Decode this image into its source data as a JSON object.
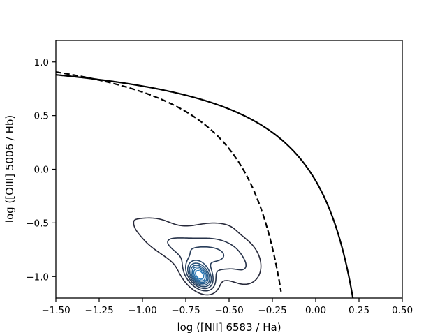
{
  "chart_data": {
    "type": "line",
    "title": "",
    "xlabel": "log ([NII] 6583 / Ha)",
    "ylabel": "log ([OIII] 5006 / Hb)",
    "xlim": [
      -1.5,
      0.5
    ],
    "ylim": [
      -1.2,
      1.2
    ],
    "xticks": [
      "−1.50",
      "−1.25",
      "−1.00",
      "−0.75",
      "−0.50",
      "−0.25",
      "0.00",
      "0.25",
      "0.50"
    ],
    "yticks": [
      "−1.0",
      "−0.5",
      "0.0",
      "0.5",
      "1.0"
    ],
    "grid": false,
    "series": [
      {
        "line_style": "solid",
        "color": "#000000",
        "formula": "0.61/(x-0.47)+1.19",
        "x_max": 0.22
      },
      {
        "line_style": "dashed",
        "color": "#000000",
        "formula": "0.61/(x-0.05)+1.3",
        "x_max": -0.2
      }
    ],
    "density_contours": {
      "peak": [
        -0.67,
        -0.99
      ],
      "color_low": "#27293a",
      "color_high": "#2a7ab8",
      "levels": 9
    }
  }
}
